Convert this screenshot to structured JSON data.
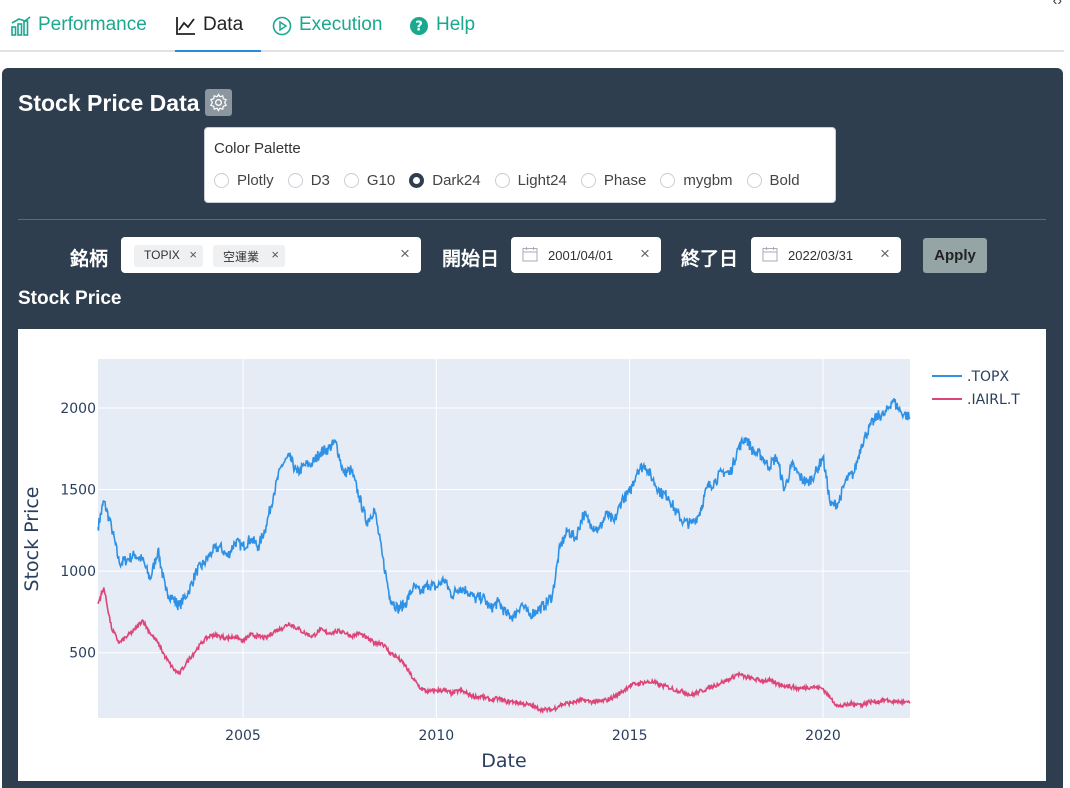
{
  "tabs": [
    {
      "label": "Performance",
      "icon": "bar-chart-icon",
      "active": false
    },
    {
      "label": "Data",
      "icon": "line-chart-icon",
      "active": true
    },
    {
      "label": "Execution",
      "icon": "play-circle-icon",
      "active": false
    },
    {
      "label": "Help",
      "icon": "question-circle-icon",
      "active": false
    }
  ],
  "panel": {
    "title": "Stock Price Data",
    "palette": {
      "label": "Color Palette",
      "options": [
        "Plotly",
        "D3",
        "G10",
        "Dark24",
        "Light24",
        "Phase",
        "mygbm",
        "Bold"
      ],
      "selected": "Dark24"
    },
    "filters": {
      "ticker_label": "銘柄",
      "tickers": [
        "TOPIX",
        "空運業"
      ],
      "start_label": "開始日",
      "start_date": "2001/04/01",
      "end_label": "終了日",
      "end_date": "2022/03/31",
      "apply_label": "Apply"
    },
    "section_title": "Stock Price"
  },
  "chart_data": {
    "type": "line",
    "xlabel": "Date",
    "ylabel": "Stock Price",
    "xlim": [
      2001.25,
      2022.25
    ],
    "ylim": [
      100,
      2300
    ],
    "xticks": [
      2005,
      2010,
      2015,
      2020
    ],
    "yticks": [
      500,
      1000,
      1500,
      2000
    ],
    "grid": true,
    "legend": "top-right",
    "series": [
      {
        "name": ".TOPX",
        "color": "#2e91e5",
        "x": [
          2001.25,
          2001.4,
          2001.6,
          2001.8,
          2002.0,
          2002.2,
          2002.4,
          2002.6,
          2002.8,
          2003.0,
          2003.2,
          2003.35,
          2003.6,
          2003.8,
          2004.0,
          2004.2,
          2004.4,
          2004.6,
          2004.8,
          2005.0,
          2005.2,
          2005.4,
          2005.6,
          2005.8,
          2006.0,
          2006.2,
          2006.4,
          2006.6,
          2006.8,
          2007.0,
          2007.2,
          2007.4,
          2007.6,
          2007.8,
          2008.0,
          2008.2,
          2008.4,
          2008.6,
          2008.8,
          2009.0,
          2009.2,
          2009.4,
          2009.6,
          2009.8,
          2010.0,
          2010.2,
          2010.4,
          2010.6,
          2010.8,
          2011.0,
          2011.2,
          2011.4,
          2011.6,
          2011.8,
          2012.0,
          2012.2,
          2012.4,
          2012.6,
          2012.8,
          2013.0,
          2013.2,
          2013.4,
          2013.6,
          2013.8,
          2014.0,
          2014.2,
          2014.4,
          2014.6,
          2014.8,
          2015.0,
          2015.2,
          2015.4,
          2015.6,
          2015.8,
          2016.0,
          2016.2,
          2016.4,
          2016.6,
          2016.8,
          2017.0,
          2017.2,
          2017.4,
          2017.6,
          2017.8,
          2018.0,
          2018.2,
          2018.4,
          2018.6,
          2018.8,
          2019.0,
          2019.2,
          2019.4,
          2019.6,
          2019.8,
          2020.0,
          2020.2,
          2020.4,
          2020.6,
          2020.8,
          2021.0,
          2021.2,
          2021.4,
          2021.6,
          2021.8,
          2022.0,
          2022.25
        ],
        "y": [
          1270,
          1430,
          1270,
          1050,
          1070,
          1100,
          1070,
          950,
          1130,
          880,
          830,
          785,
          880,
          1000,
          1050,
          1120,
          1150,
          1090,
          1180,
          1150,
          1200,
          1150,
          1280,
          1480,
          1650,
          1700,
          1600,
          1650,
          1660,
          1730,
          1750,
          1790,
          1600,
          1620,
          1460,
          1300,
          1380,
          1100,
          840,
          770,
          800,
          900,
          870,
          920,
          900,
          950,
          850,
          900,
          880,
          830,
          840,
          770,
          810,
          740,
          720,
          800,
          730,
          760,
          790,
          850,
          1150,
          1250,
          1200,
          1350,
          1290,
          1250,
          1350,
          1300,
          1440,
          1480,
          1620,
          1650,
          1560,
          1480,
          1460,
          1360,
          1300,
          1290,
          1350,
          1510,
          1550,
          1610,
          1600,
          1750,
          1820,
          1730,
          1710,
          1640,
          1700,
          1500,
          1650,
          1580,
          1540,
          1600,
          1700,
          1400,
          1420,
          1560,
          1600,
          1780,
          1880,
          1950,
          1960,
          2050,
          1980,
          1940
        ]
      },
      {
        "name": ".IAIRL.T",
        "color": "#dd4477",
        "x": [
          2001.25,
          2001.4,
          2001.6,
          2001.8,
          2002.0,
          2002.2,
          2002.4,
          2002.6,
          2002.8,
          2003.0,
          2003.2,
          2003.35,
          2003.6,
          2003.8,
          2004.0,
          2004.2,
          2004.4,
          2004.6,
          2004.8,
          2005.0,
          2005.2,
          2005.4,
          2005.6,
          2005.8,
          2006.0,
          2006.2,
          2006.4,
          2006.6,
          2006.8,
          2007.0,
          2007.2,
          2007.4,
          2007.6,
          2007.8,
          2008.0,
          2008.2,
          2008.4,
          2008.6,
          2008.8,
          2009.0,
          2009.2,
          2009.4,
          2009.6,
          2009.8,
          2010.0,
          2010.2,
          2010.4,
          2010.6,
          2010.8,
          2011.0,
          2011.2,
          2011.4,
          2011.6,
          2011.8,
          2012.0,
          2012.2,
          2012.4,
          2012.6,
          2012.8,
          2013.0,
          2013.2,
          2013.4,
          2013.6,
          2013.8,
          2014.0,
          2014.2,
          2014.4,
          2014.6,
          2014.8,
          2015.0,
          2015.2,
          2015.4,
          2015.6,
          2015.8,
          2016.0,
          2016.2,
          2016.4,
          2016.6,
          2016.8,
          2017.0,
          2017.2,
          2017.4,
          2017.6,
          2017.8,
          2018.0,
          2018.2,
          2018.4,
          2018.6,
          2018.8,
          2019.0,
          2019.2,
          2019.4,
          2019.6,
          2019.8,
          2020.0,
          2020.2,
          2020.4,
          2020.6,
          2020.8,
          2021.0,
          2021.2,
          2021.4,
          2021.6,
          2021.8,
          2022.0,
          2022.25
        ],
        "y": [
          800,
          900,
          650,
          560,
          600,
          640,
          700,
          620,
          560,
          470,
          400,
          370,
          460,
          520,
          580,
          610,
          600,
          590,
          600,
          570,
          610,
          600,
          590,
          630,
          650,
          680,
          650,
          620,
          600,
          640,
          620,
          630,
          630,
          600,
          620,
          590,
          560,
          560,
          500,
          470,
          420,
          340,
          280,
          260,
          270,
          270,
          250,
          270,
          250,
          230,
          230,
          210,
          220,
          200,
          200,
          190,
          180,
          160,
          150,
          150,
          180,
          190,
          200,
          210,
          200,
          200,
          210,
          230,
          260,
          300,
          310,
          320,
          320,
          300,
          290,
          270,
          260,
          240,
          260,
          280,
          300,
          320,
          340,
          370,
          350,
          340,
          330,
          330,
          310,
          300,
          290,
          280,
          290,
          290,
          280,
          220,
          170,
          180,
          190,
          180,
          200,
          200,
          210,
          200,
          200,
          190
        ]
      }
    ]
  }
}
